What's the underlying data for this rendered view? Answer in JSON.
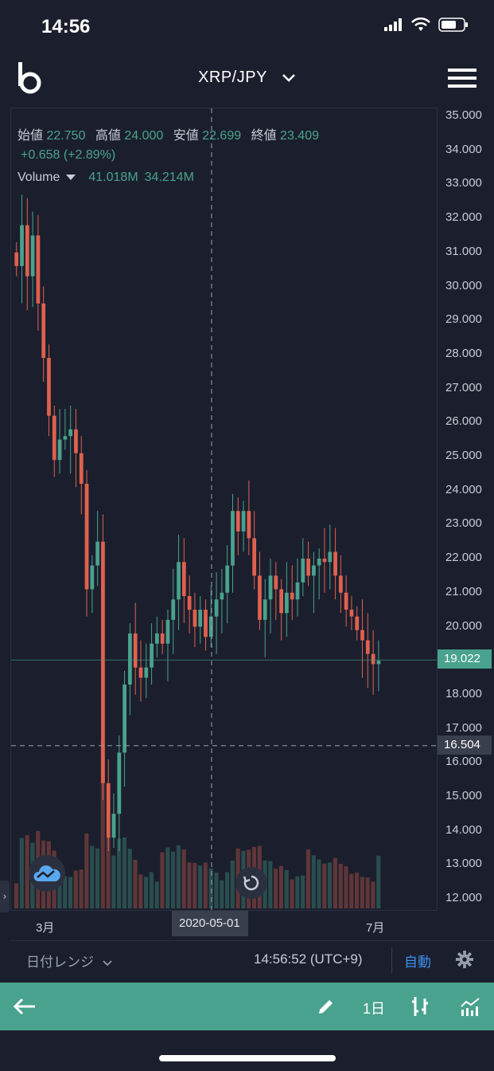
{
  "status": {
    "time": "14:56"
  },
  "header": {
    "pair": "XRP/JPY"
  },
  "legend": {
    "open_label": "始値",
    "open": "22.750",
    "high_label": "高値",
    "high": "24.000",
    "low_label": "安値",
    "low": "22.699",
    "close_label": "終値",
    "close": "23.409",
    "change": "+0.658 (+2.89%)",
    "volume_label": "Volume",
    "volume_1": "41.018M",
    "volume_2": "34.214M"
  },
  "yaxis": {
    "ticks": [
      "35.000",
      "34.000",
      "33.000",
      "32.000",
      "31.000",
      "30.000",
      "29.000",
      "28.000",
      "27.000",
      "26.000",
      "25.000",
      "24.000",
      "23.000",
      "22.000",
      "21.000",
      "20.000",
      "19.000",
      "18.000",
      "17.000",
      "16.000",
      "15.000",
      "14.000",
      "13.000",
      "12.000"
    ],
    "last_price": "19.022",
    "crosshair_price": "16.504"
  },
  "xaxis": {
    "label_mar": "3月",
    "label_jul": "7月",
    "crosshair_date": "2020-05-01"
  },
  "toolbar": {
    "range": "日付レンジ",
    "clock": "14:56:52 (UTC+9)",
    "auto": "自動"
  },
  "bottom": {
    "interval": "1日"
  },
  "colors": {
    "up": "#49a28d",
    "down": "#e0604f",
    "accent": "#49a28d",
    "link": "#3d8ff0"
  },
  "chart_data": {
    "type": "candlestick",
    "ylim": [
      12,
      35
    ],
    "closes": [
      30.6,
      31.8,
      30.3,
      31.5,
      29.5,
      27.9,
      26.2,
      24.9,
      25.5,
      25.6,
      25.8,
      25.1,
      24.2,
      21.1,
      21.8,
      22.5,
      15.4,
      13.8,
      14.5,
      16.3,
      18.3,
      19.8,
      18.8,
      18.5,
      18.8,
      19.5,
      19.8,
      19.5,
      20.2,
      20.8,
      21.9,
      20.9,
      20.5,
      20.0,
      20.5,
      19.7,
      20.3,
      20.8,
      21.0,
      21.8,
      23.4,
      22.8,
      23.4,
      22.6,
      21.5,
      20.2,
      20.8,
      21.5,
      21.1,
      20.4,
      21.0,
      20.8,
      21.3,
      22.0,
      21.5,
      21.8,
      22.0,
      21.9,
      22.2,
      21.5,
      21.0,
      20.5,
      20.3,
      19.9,
      19.6,
      19.2,
      18.9,
      19.0
    ],
    "x_labels": [
      "3月",
      "7月"
    ],
    "crosshair": {
      "date": "2020-05-01",
      "price": 16.504
    },
    "last_price": 19.022
  }
}
